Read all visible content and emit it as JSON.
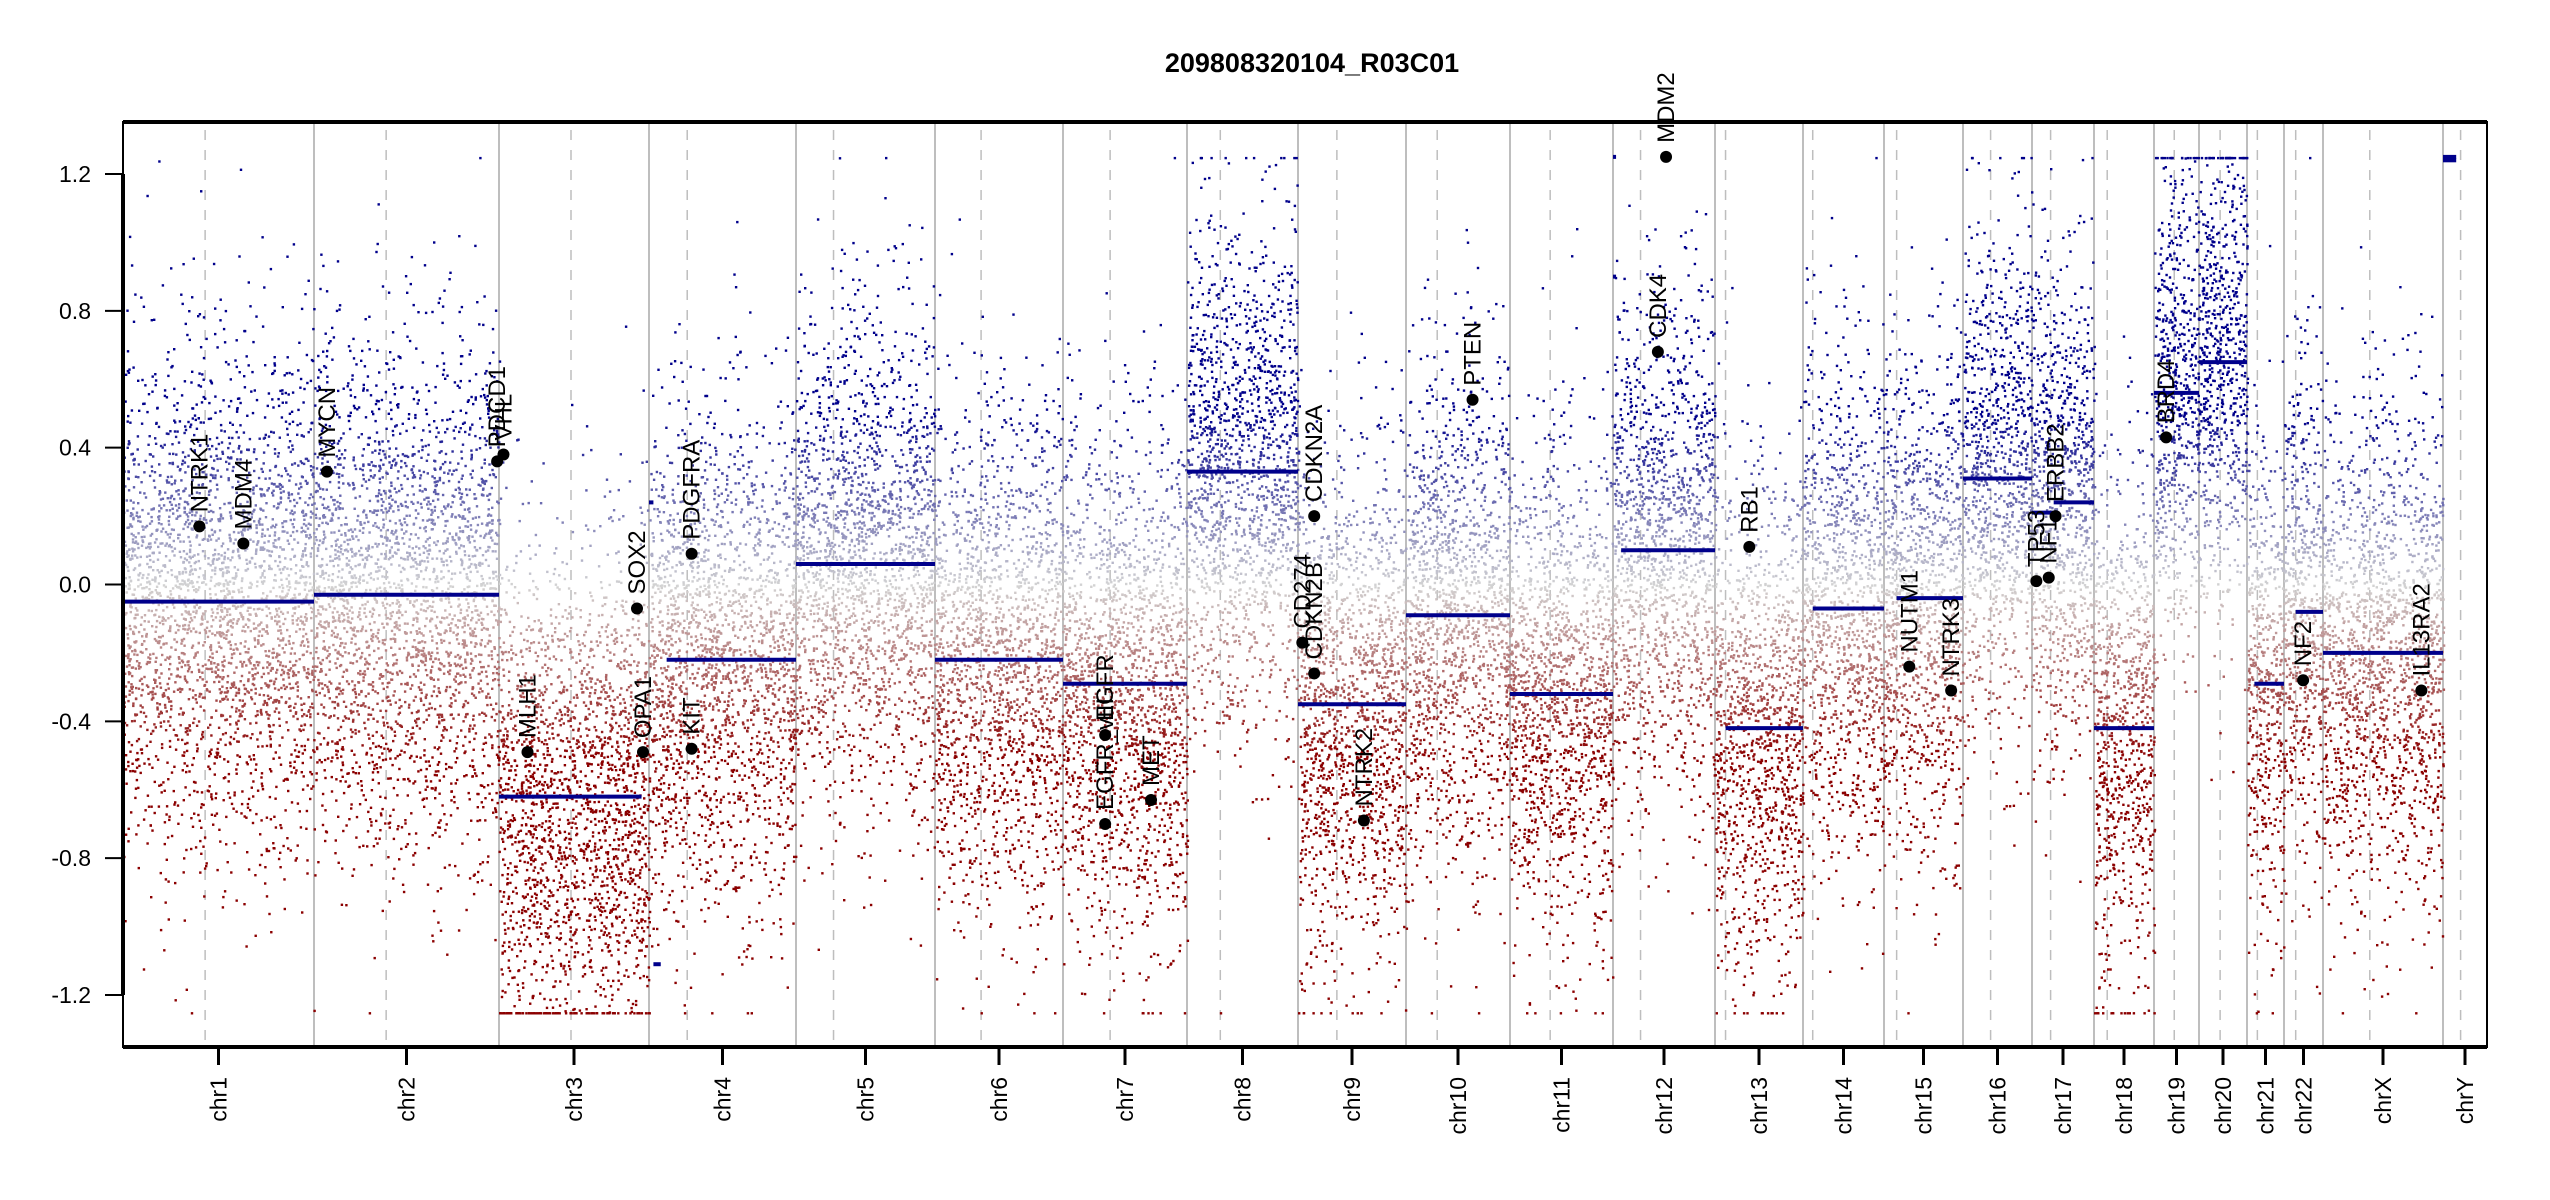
{
  "chart_data": {
    "type": "scatter",
    "title": "209808320104_R03C01",
    "xlabel": "",
    "ylabel": "",
    "ylim": [
      -1.352,
      1.352
    ],
    "yticks": [
      -1.2,
      -0.8,
      -0.4,
      0.0,
      0.4,
      0.8,
      1.2
    ],
    "ytick_labels": [
      "-1.2",
      "-0.8",
      "-0.4",
      "0.0",
      "0.4",
      "0.8",
      "1.2"
    ],
    "grid": false,
    "clip_range": [
      -1.25,
      1.25
    ],
    "colors": {
      "gain": "#00008b",
      "neutral": "#d3d3d3",
      "loss": "#8b0000",
      "segment": "#00008b",
      "gene_point": "#000000",
      "boundary_line": "#bebebe",
      "centromere_line": "#bebebe",
      "axis": "#000000"
    },
    "chromosomes": [
      {
        "name": "chr1",
        "length": 191,
        "centromere": 0.43,
        "seg_level": -0.05
      },
      {
        "name": "chr2",
        "length": 185,
        "centromere": 0.39,
        "seg_level": -0.03
      },
      {
        "name": "chr3",
        "length": 150,
        "centromere": 0.48,
        "seg_level": -0.62
      },
      {
        "name": "chr4",
        "length": 147,
        "centromere": 0.26,
        "seg_level": -0.22
      },
      {
        "name": "chr5",
        "length": 139,
        "centromere": 0.27,
        "seg_level": 0.06
      },
      {
        "name": "chr6",
        "length": 128,
        "centromere": 0.36,
        "seg_level": -0.22
      },
      {
        "name": "chr7",
        "length": 124,
        "centromere": 0.38,
        "seg_level": -0.29
      },
      {
        "name": "chr8",
        "length": 111,
        "centromere": 0.3,
        "seg_level": 0.33
      },
      {
        "name": "chr9",
        "length": 108,
        "centromere": 0.36,
        "seg_level": -0.35
      },
      {
        "name": "chr10",
        "length": 104,
        "centromere": 0.3,
        "seg_level": -0.09
      },
      {
        "name": "chr11",
        "length": 103,
        "centromere": 0.39,
        "seg_level": -0.32
      },
      {
        "name": "chr12",
        "length": 102,
        "centromere": 0.27,
        "seg_level": 0.1
      },
      {
        "name": "chr13",
        "length": 88,
        "centromere": 0.12,
        "seg_level": -0.42
      },
      {
        "name": "chr14",
        "length": 81,
        "centromere": 0.12,
        "seg_level": -0.07
      },
      {
        "name": "chr15",
        "length": 79,
        "centromere": 0.16,
        "seg_level": -0.04
      },
      {
        "name": "chr16",
        "length": 69,
        "centromere": 0.4,
        "seg_level": 0.31
      },
      {
        "name": "chr17",
        "length": 62,
        "centromere": 0.3,
        "seg_level": 0.24
      },
      {
        "name": "chr18",
        "length": 60,
        "centromere": 0.22,
        "seg_level": -0.42
      },
      {
        "name": "chr19",
        "length": 45,
        "centromere": 0.45,
        "seg_level": 0.56
      },
      {
        "name": "chr20",
        "length": 48,
        "centromere": 0.44,
        "seg_level": 0.65
      },
      {
        "name": "chr21",
        "length": 37,
        "centromere": 0.28,
        "seg_level": -0.29
      },
      {
        "name": "chr22",
        "length": 39,
        "centromere": 0.3,
        "seg_level": -0.08
      },
      {
        "name": "chrX",
        "length": 120,
        "centromere": 0.39,
        "seg_level": -0.2
      },
      {
        "name": "chrY",
        "length": 44,
        "centromere": 0.4,
        "seg_level": null
      }
    ],
    "segments": [
      {
        "chrom": "chr1",
        "start": 0.0,
        "end": 1.0,
        "value": -0.05
      },
      {
        "chrom": "chr2",
        "start": 0.0,
        "end": 1.0,
        "value": -0.03
      },
      {
        "chrom": "chr3",
        "start": 0.0,
        "end": 0.95,
        "value": -0.62
      },
      {
        "chrom": "chr4",
        "start": 0.0,
        "end": 0.03,
        "value": 0.24
      },
      {
        "chrom": "chr4",
        "start": 0.03,
        "end": 0.08,
        "value": -1.11
      },
      {
        "chrom": "chr4",
        "start": 0.12,
        "end": 1.0,
        "value": -0.22
      },
      {
        "chrom": "chr5",
        "start": 0.0,
        "end": 1.0,
        "value": 0.06
      },
      {
        "chrom": "chr6",
        "start": 0.0,
        "end": 1.0,
        "value": -0.22
      },
      {
        "chrom": "chr7",
        "start": 0.0,
        "end": 1.0,
        "value": -0.29
      },
      {
        "chrom": "chr8",
        "start": 0.0,
        "end": 1.0,
        "value": 0.33
      },
      {
        "chrom": "chr9",
        "start": 0.0,
        "end": 1.0,
        "value": -0.35
      },
      {
        "chrom": "chr10",
        "start": 0.0,
        "end": 1.0,
        "value": -0.09
      },
      {
        "chrom": "chr11",
        "start": 0.0,
        "end": 1.0,
        "value": -0.32
      },
      {
        "chrom": "chr12",
        "start": 0.0,
        "end": 0.03,
        "value": 1.25
      },
      {
        "chrom": "chr12",
        "start": 0.0,
        "end": 0.03,
        "value": 0.9
      },
      {
        "chrom": "chr12",
        "start": 0.08,
        "end": 1.0,
        "value": 0.1
      },
      {
        "chrom": "chr13",
        "start": 0.12,
        "end": 1.0,
        "value": -0.42
      },
      {
        "chrom": "chr14",
        "start": 0.12,
        "end": 1.0,
        "value": -0.07
      },
      {
        "chrom": "chr15",
        "start": 0.16,
        "end": 1.0,
        "value": -0.04
      },
      {
        "chrom": "chr16",
        "start": 0.0,
        "end": 1.0,
        "value": 0.31
      },
      {
        "chrom": "chr17",
        "start": 0.0,
        "end": 0.35,
        "value": 0.21
      },
      {
        "chrom": "chr17",
        "start": 0.35,
        "end": 1.0,
        "value": 0.24
      },
      {
        "chrom": "chr18",
        "start": 0.0,
        "end": 1.0,
        "value": -0.42
      },
      {
        "chrom": "chr19",
        "start": 0.0,
        "end": 1.0,
        "value": 0.56
      },
      {
        "chrom": "chr20",
        "start": 0.0,
        "end": 1.0,
        "value": 0.65
      },
      {
        "chrom": "chr21",
        "start": 0.2,
        "end": 1.0,
        "value": -0.29
      },
      {
        "chrom": "chr22",
        "start": 0.3,
        "end": 1.0,
        "value": -0.08
      },
      {
        "chrom": "chrX",
        "start": 0.0,
        "end": 1.0,
        "value": -0.2
      },
      {
        "chrom": "chrY",
        "start": 0.0,
        "end": 0.3,
        "value": 1.24
      },
      {
        "chrom": "chrY",
        "start": 0.0,
        "end": 0.3,
        "value": 1.25
      }
    ],
    "genes": [
      {
        "name": "NTRK1",
        "chrom": "chr1",
        "pos": 0.4,
        "value": 0.17
      },
      {
        "name": "MDM4",
        "chrom": "chr1",
        "pos": 0.63,
        "value": 0.12
      },
      {
        "name": "MYCN",
        "chrom": "chr2",
        "pos": 0.07,
        "value": 0.33
      },
      {
        "name": "PDCD1",
        "chrom": "chr2",
        "pos": 0.99,
        "value": 0.36
      },
      {
        "name": "VHL",
        "chrom": "chr3",
        "pos": 0.03,
        "value": 0.38
      },
      {
        "name": "MLH1",
        "chrom": "chr3",
        "pos": 0.19,
        "value": -0.49
      },
      {
        "name": "SOX2",
        "chrom": "chr3",
        "pos": 0.92,
        "value": -0.07
      },
      {
        "name": "OPA1",
        "chrom": "chr3",
        "pos": 0.96,
        "value": -0.49
      },
      {
        "name": "PDGFRA",
        "chrom": "chr4",
        "pos": 0.29,
        "value": 0.09
      },
      {
        "name": "KIT",
        "chrom": "chr4",
        "pos": 0.29,
        "value": -0.48
      },
      {
        "name": "EGFR",
        "chrom": "chr7",
        "pos": 0.34,
        "value": -0.44
      },
      {
        "name": "EGFR_vIII",
        "chrom": "chr7",
        "pos": 0.34,
        "value": -0.7
      },
      {
        "name": "MET",
        "chrom": "chr7",
        "pos": 0.71,
        "value": -0.63
      },
      {
        "name": "CD274",
        "chrom": "chr9",
        "pos": 0.04,
        "value": -0.17
      },
      {
        "name": "CDKN2A",
        "chrom": "chr9",
        "pos": 0.15,
        "value": 0.2
      },
      {
        "name": "CDKN2B",
        "chrom": "chr9",
        "pos": 0.15,
        "value": -0.26
      },
      {
        "name": "NTRK2",
        "chrom": "chr9",
        "pos": 0.61,
        "value": -0.69
      },
      {
        "name": "PTEN",
        "chrom": "chr10",
        "pos": 0.64,
        "value": 0.54
      },
      {
        "name": "CDK4",
        "chrom": "chr12",
        "pos": 0.44,
        "value": 0.68
      },
      {
        "name": "MDM2",
        "chrom": "chr12",
        "pos": 0.52,
        "value": 1.25
      },
      {
        "name": "RB1",
        "chrom": "chr13",
        "pos": 0.39,
        "value": 0.11
      },
      {
        "name": "NUTM1",
        "chrom": "chr15",
        "pos": 0.32,
        "value": -0.24
      },
      {
        "name": "NTRK3",
        "chrom": "chr15",
        "pos": 0.85,
        "value": -0.31
      },
      {
        "name": "TP53",
        "chrom": "chr17",
        "pos": 0.07,
        "value": 0.01
      },
      {
        "name": "NF1",
        "chrom": "chr17",
        "pos": 0.27,
        "value": 0.02
      },
      {
        "name": "ERBB2",
        "chrom": "chr17",
        "pos": 0.38,
        "value": 0.2
      },
      {
        "name": "BRD4",
        "chrom": "chr19",
        "pos": 0.27,
        "value": 0.43
      },
      {
        "name": "NF2",
        "chrom": "chr22",
        "pos": 0.49,
        "value": -0.28
      },
      {
        "name": "IL13RA2",
        "chrom": "chrX",
        "pos": 0.82,
        "value": -0.31
      }
    ]
  }
}
